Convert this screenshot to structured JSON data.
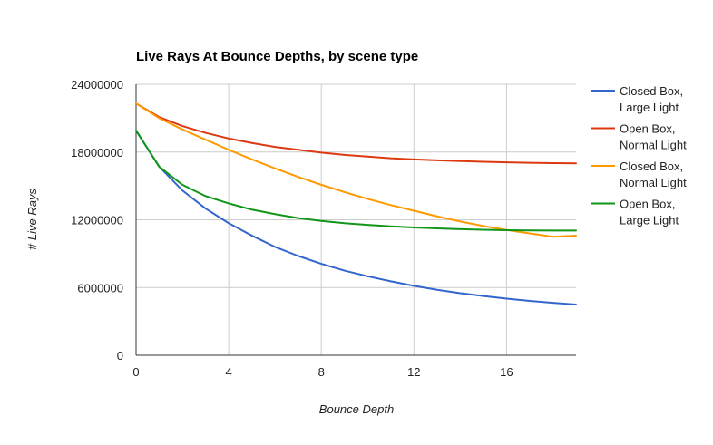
{
  "chart_data": {
    "type": "line",
    "title": "Live Rays At Bounce Depths, by scene type",
    "xlabel": "Bounce Depth",
    "ylabel": "# Live Rays",
    "xlim": [
      0,
      19
    ],
    "ylim": [
      0,
      24000000
    ],
    "xticks": [
      0,
      4,
      8,
      12,
      16
    ],
    "yticks": [
      0,
      6000000,
      12000000,
      18000000,
      24000000
    ],
    "grid": true,
    "legend_position": "right",
    "x": [
      0,
      1,
      2,
      3,
      4,
      5,
      6,
      7,
      8,
      9,
      10,
      11,
      12,
      13,
      14,
      15,
      16,
      17,
      18,
      19
    ],
    "series": [
      {
        "name": "Closed Box, Large Light",
        "color": "#3366cc",
        "values": [
          19900000,
          16700000,
          14600000,
          13000000,
          11700000,
          10600000,
          9600000,
          8800000,
          8100000,
          7500000,
          7000000,
          6550000,
          6150000,
          5800000,
          5500000,
          5250000,
          5020000,
          4820000,
          4650000,
          4500000
        ]
      },
      {
        "name": "Open Box, Normal Light",
        "color": "#dc3912",
        "values": [
          22300000,
          21100000,
          20300000,
          19700000,
          19200000,
          18800000,
          18450000,
          18200000,
          17950000,
          17750000,
          17600000,
          17450000,
          17350000,
          17270000,
          17200000,
          17140000,
          17090000,
          17050000,
          17020000,
          17000000
        ]
      },
      {
        "name": "Closed Box, Normal Light",
        "color": "#ff9900",
        "values": [
          22300000,
          21000000,
          20000000,
          19100000,
          18200000,
          17350000,
          16550000,
          15800000,
          15100000,
          14450000,
          13850000,
          13300000,
          12800000,
          12300000,
          11850000,
          11450000,
          11100000,
          10800000,
          10500000,
          10600000
        ]
      },
      {
        "name": "Open Box, Large Light",
        "color": "#109618",
        "values": [
          19900000,
          16700000,
          15100000,
          14100000,
          13450000,
          12900000,
          12500000,
          12150000,
          11900000,
          11700000,
          11550000,
          11420000,
          11320000,
          11240000,
          11170000,
          11120000,
          11080000,
          11060000,
          11050000,
          11050000
        ]
      }
    ]
  },
  "legend": {
    "entries": [
      {
        "line1": "Closed Box,",
        "line2": "Large Light"
      },
      {
        "line1": "Open Box,",
        "line2": "Normal Light"
      },
      {
        "line1": "Closed Box,",
        "line2": "Normal Light"
      },
      {
        "line1": "Open Box,",
        "line2": "Large Light"
      }
    ]
  },
  "y_tick_labels": [
    "0",
    "6000000",
    "12000000",
    "18000000",
    "24000000"
  ],
  "x_tick_labels": [
    "0",
    "4",
    "8",
    "12",
    "16"
  ]
}
